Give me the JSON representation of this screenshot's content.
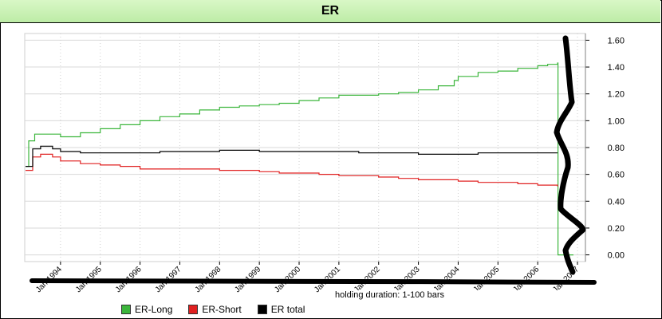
{
  "window": {
    "title": "ER"
  },
  "chart_data": {
    "type": "line",
    "title": "ER",
    "subtitle": "holding duration: 1-100 bars",
    "xlabel": "",
    "ylabel": "",
    "x_ticks": [
      "Jan 1994",
      "Jan 1995",
      "Jan 1996",
      "Jan 1997",
      "Jan 1998",
      "Jan 1999",
      "Jan 2000",
      "Jan 2001",
      "Jan 2002",
      "Jan 2003",
      "Jan 2004",
      "Jan 2005",
      "Jan 2006",
      "Jan 2007"
    ],
    "y_ticks": [
      "0.00",
      "0.20",
      "0.40",
      "0.60",
      "0.80",
      "1.00",
      "1.20",
      "1.40",
      "1.60"
    ],
    "ylim": [
      -0.05,
      1.65
    ],
    "xlim": [
      1993.1,
      2007.2
    ],
    "grid": true,
    "legend_position": "bottom",
    "series": [
      {
        "name": "ER-Long",
        "color": "#3cb63c",
        "x": [
          1993.12,
          1993.2,
          1993.35,
          1993.6,
          1994.0,
          1994.5,
          1995.0,
          1995.5,
          1996.0,
          1996.5,
          1997.0,
          1997.5,
          1998.0,
          1998.5,
          1999.0,
          1999.5,
          2000.0,
          2000.5,
          2001.0,
          2001.5,
          2002.0,
          2002.5,
          2003.0,
          2003.5,
          2003.9,
          2004.0,
          2004.5,
          2005.0,
          2005.5,
          2006.0,
          2006.25,
          2006.5,
          2006.51,
          2006.9
        ],
        "values": [
          0.66,
          0.85,
          0.9,
          0.9,
          0.88,
          0.91,
          0.94,
          0.97,
          1.0,
          1.03,
          1.05,
          1.08,
          1.1,
          1.11,
          1.12,
          1.13,
          1.15,
          1.17,
          1.19,
          1.19,
          1.2,
          1.21,
          1.23,
          1.26,
          1.3,
          1.33,
          1.36,
          1.37,
          1.39,
          1.41,
          1.42,
          1.43,
          0.0,
          0.0
        ]
      },
      {
        "name": "ER-Short",
        "color": "#e02020",
        "x": [
          1993.12,
          1993.3,
          1993.5,
          1993.8,
          1994.0,
          1994.5,
          1995.0,
          1995.5,
          1996.0,
          1996.5,
          1997.0,
          1997.5,
          1998.0,
          1998.5,
          1999.0,
          1999.5,
          2000.0,
          2000.5,
          2001.0,
          2001.5,
          2002.0,
          2002.5,
          2003.0,
          2003.5,
          2004.0,
          2004.5,
          2005.0,
          2005.5,
          2006.0,
          2006.5
        ],
        "values": [
          0.63,
          0.73,
          0.75,
          0.73,
          0.7,
          0.68,
          0.67,
          0.66,
          0.64,
          0.64,
          0.64,
          0.64,
          0.63,
          0.63,
          0.62,
          0.61,
          0.61,
          0.6,
          0.59,
          0.59,
          0.58,
          0.57,
          0.56,
          0.56,
          0.55,
          0.54,
          0.54,
          0.53,
          0.52,
          0.51
        ]
      },
      {
        "name": "ER total",
        "color": "#000000",
        "x": [
          1993.12,
          1993.3,
          1993.5,
          1993.8,
          1994.0,
          1994.5,
          1995.0,
          1995.5,
          1996.0,
          1996.5,
          1997.0,
          1997.5,
          1998.0,
          1998.5,
          1999.0,
          1999.5,
          2000.0,
          2000.5,
          2001.0,
          2001.5,
          2002.0,
          2002.5,
          2003.0,
          2003.5,
          2004.0,
          2004.5,
          2005.0,
          2005.5,
          2006.0,
          2006.5
        ],
        "values": [
          0.66,
          0.79,
          0.81,
          0.79,
          0.77,
          0.76,
          0.76,
          0.76,
          0.76,
          0.77,
          0.77,
          0.77,
          0.78,
          0.78,
          0.77,
          0.77,
          0.77,
          0.77,
          0.77,
          0.76,
          0.76,
          0.76,
          0.75,
          0.75,
          0.75,
          0.76,
          0.76,
          0.76,
          0.76,
          0.76
        ]
      }
    ]
  }
}
